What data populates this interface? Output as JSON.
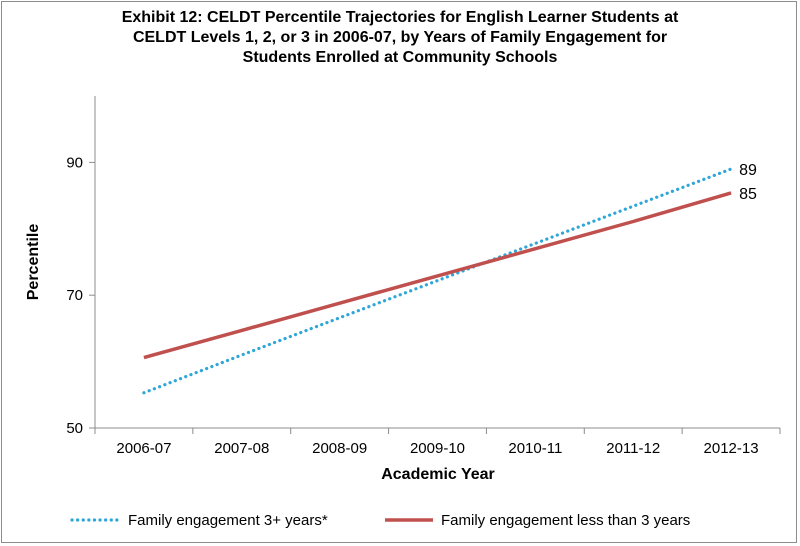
{
  "chart_data": {
    "type": "line",
    "title_lines": [
      "Exhibit 12: CELDT Percentile Trajectories for English Learner Students at",
      "CELDT Levels 1, 2, or 3 in 2006-07, by Years of Family Engagement for",
      "Students Enrolled at Community Schools"
    ],
    "xlabel": "Academic Year",
    "ylabel": "Percentile",
    "categories": [
      "2006-07",
      "2007-08",
      "2008-09",
      "2009-10",
      "2010-11",
      "2011-12",
      "2012-13"
    ],
    "yticks": [
      "50",
      "70",
      "90"
    ],
    "ylim": [
      50,
      100
    ],
    "grid": false,
    "legend_position": "bottom",
    "series": [
      {
        "name": "Family engagement 3+ years*",
        "values": [
          55.3,
          61.0,
          66.6,
          72.2,
          77.8,
          83.4,
          89.0
        ],
        "end_label": "89",
        "color": "#2ea6d8",
        "style": "dotted"
      },
      {
        "name": "Family engagement less than 3 years",
        "values": [
          60.6,
          64.7,
          68.8,
          72.9,
          77.0,
          81.1,
          85.4
        ],
        "end_label": "85",
        "color": "#c0504d",
        "style": "solid"
      }
    ]
  }
}
